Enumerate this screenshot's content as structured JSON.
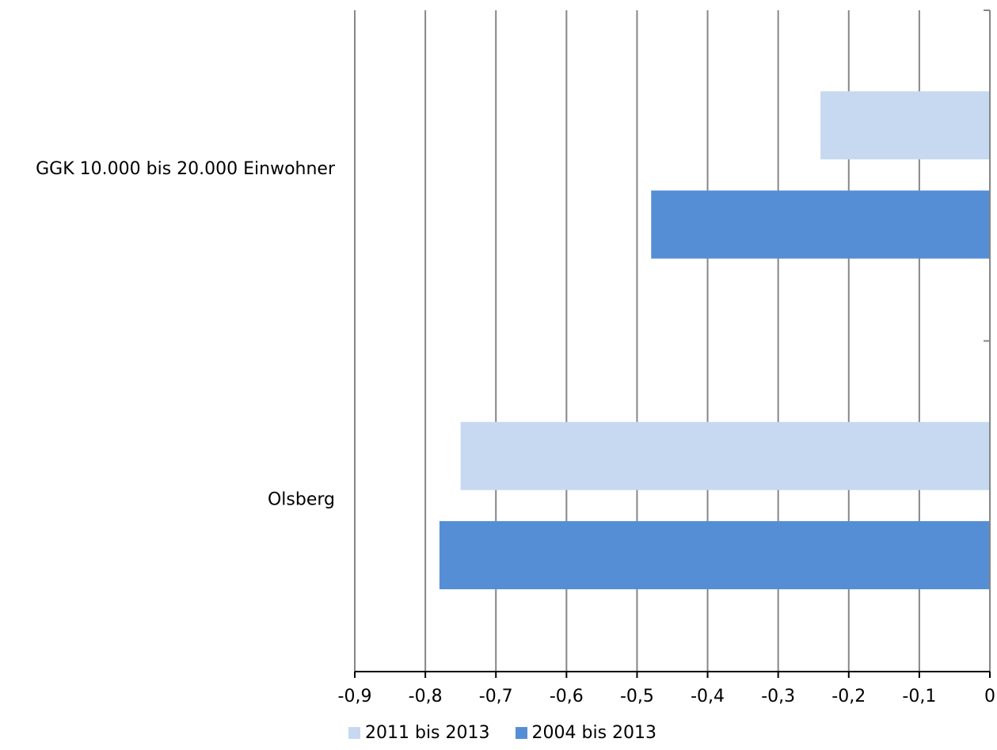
{
  "chart_data": {
    "type": "bar",
    "orientation": "horizontal",
    "title": "",
    "xlabel": "",
    "ylabel": "",
    "categories": [
      "GGK 10.000 bis 20.000 Einwohner",
      "Olsberg"
    ],
    "series": [
      {
        "name": "2011 bis 2013",
        "color": "#c6d9f1",
        "values": [
          -0.24,
          -0.75
        ]
      },
      {
        "name": "2004 bis 2013",
        "color": "#558ed5",
        "values": [
          -0.48,
          -0.78
        ]
      }
    ],
    "xlim": [
      -0.9,
      0
    ],
    "xticks": [
      -0.9,
      -0.8,
      -0.7,
      -0.6,
      -0.5,
      -0.4,
      -0.3,
      -0.2,
      -0.1,
      0
    ],
    "xtick_labels": [
      "-0,9",
      "-0,8",
      "-0,7",
      "-0,6",
      "-0,5",
      "-0,4",
      "-0,3",
      "-0,2",
      "-0,1",
      "0"
    ],
    "grid": true,
    "legend_position": "bottom"
  }
}
